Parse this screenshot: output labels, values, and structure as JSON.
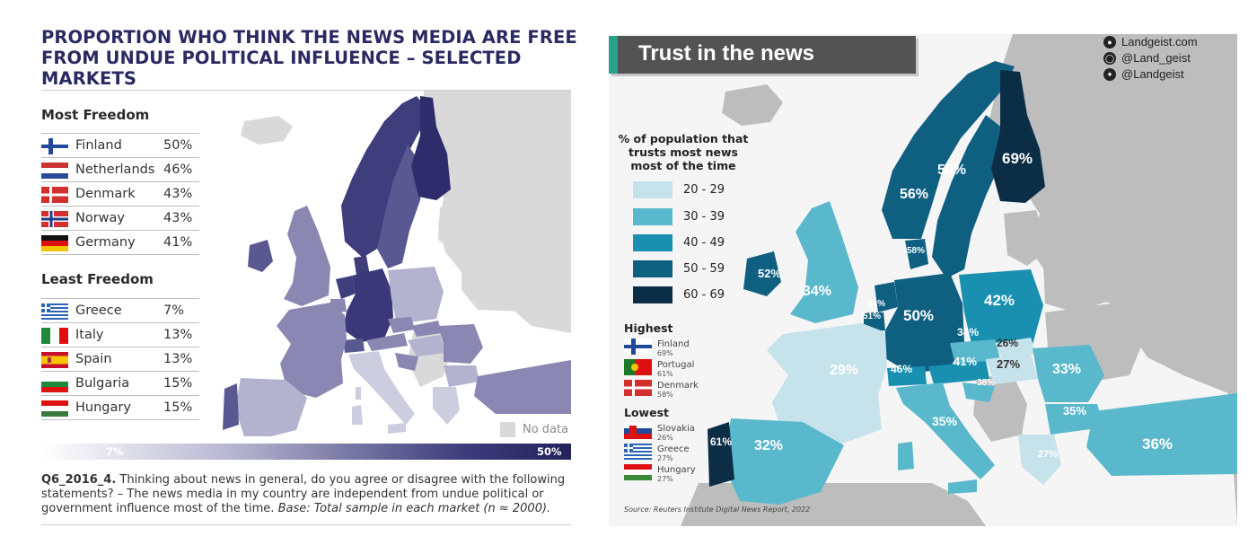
{
  "left_panel": {
    "title_line1": "PROPORTION WHO THINK THE NEWS MEDIA ARE FREE",
    "title_line2": "FROM UNDUE POLITICAL INFLUENCE – SELECTED MARKETS",
    "most_heading": "Most Freedom",
    "most": [
      {
        "country": "Finland",
        "value": "50%",
        "flag": "finland-flag"
      },
      {
        "country": "Netherlands",
        "value": "46%",
        "flag": "netherlands-flag"
      },
      {
        "country": "Denmark",
        "value": "43%",
        "flag": "denmark-flag"
      },
      {
        "country": "Norway",
        "value": "43%",
        "flag": "norway-flag"
      },
      {
        "country": "Germany",
        "value": "41%",
        "flag": "germany-flag"
      }
    ],
    "least_heading": "Least Freedom",
    "least": [
      {
        "country": "Greece",
        "value": "7%",
        "flag": "greece-flag"
      },
      {
        "country": "Italy",
        "value": "13%",
        "flag": "italy-flag"
      },
      {
        "country": "Spain",
        "value": "13%",
        "flag": "spain-flag"
      },
      {
        "country": "Bulgaria",
        "value": "15%",
        "flag": "bulgaria-flag"
      },
      {
        "country": "Hungary",
        "value": "15%",
        "flag": "hungary-flag"
      }
    ],
    "no_data_label": "No data",
    "scale_low": "7%",
    "scale_high": "50%",
    "note_code": "Q6_2016_4.",
    "note_text": " Thinking about news in general, do you agree or disagree with the following statements? – The news media in my country are independent from undue political or government influence most of the time. ",
    "note_base": "Base: Total sample in each market (n ≈ 2000).",
    "colors": {
      "title": "#2a2a63",
      "darkest": "#2e2c6a",
      "dark": "#4b4985",
      "mid": "#8a88b3",
      "light": "#b3b2cf",
      "lightest": "#cdcde0",
      "no_data": "#d9d9d9"
    }
  },
  "right_panel": {
    "banner_title": "Trust in the news",
    "social": [
      {
        "icon": "globe-icon",
        "text": "Landgeist.com"
      },
      {
        "icon": "instagram-icon",
        "text": "@Land_geist"
      },
      {
        "icon": "twitter-icon",
        "text": "@Landgeist"
      }
    ],
    "legend_title_1": "% of population that",
    "legend_title_2": "trusts most news",
    "legend_title_3": "most of the time",
    "legend": [
      {
        "range": "20 - 29",
        "color": "#c6e3eb"
      },
      {
        "range": "30 - 39",
        "color": "#5ab8cc"
      },
      {
        "range": "40 - 49",
        "color": "#1990b0"
      },
      {
        "range": "50 - 59",
        "color": "#0e5f80"
      },
      {
        "range": "60 - 69",
        "color": "#0b2d45"
      }
    ],
    "highest_heading": "Highest",
    "highest": [
      {
        "country": "Finland",
        "value": "69%",
        "flag": "finland-flag"
      },
      {
        "country": "Portugal",
        "value": "61%",
        "flag": "portugal-flag"
      },
      {
        "country": "Denmark",
        "value": "58%",
        "flag": "denmark-flag"
      }
    ],
    "lowest_heading": "Lowest",
    "lowest": [
      {
        "country": "Slovakia",
        "value": "26%",
        "flag": "slovakia-flag"
      },
      {
        "country": "Greece",
        "value": "27%",
        "flag": "greece-flag"
      },
      {
        "country": "Hungary",
        "value": "27%",
        "flag": "hungary-flag"
      }
    ],
    "source": "Source: Reuters Institute Digital News Report, 2022",
    "map_labels": {
      "finland": "69%",
      "sweden": "50%",
      "norway": "56%",
      "denmark": "58%",
      "ireland": "52%",
      "uk": "34%",
      "netherlands": "56%",
      "belgium": "51%",
      "germany": "50%",
      "poland": "42%",
      "czechia": "34%",
      "slovakia": "26%",
      "austria": "41%",
      "switzerland": "46%",
      "hungary": "27%",
      "croatia": "38%",
      "romania": "33%",
      "bulgaria": "35%",
      "france": "29%",
      "italy": "35%",
      "spain": "32%",
      "portugal": "61%",
      "greece": "27%",
      "turkey": "36%"
    },
    "colors": {
      "no_data": "#bdbdbd",
      "sea": "#f5f5f5",
      "banner": "#535353",
      "banner_accent": "#2aa18a"
    }
  }
}
